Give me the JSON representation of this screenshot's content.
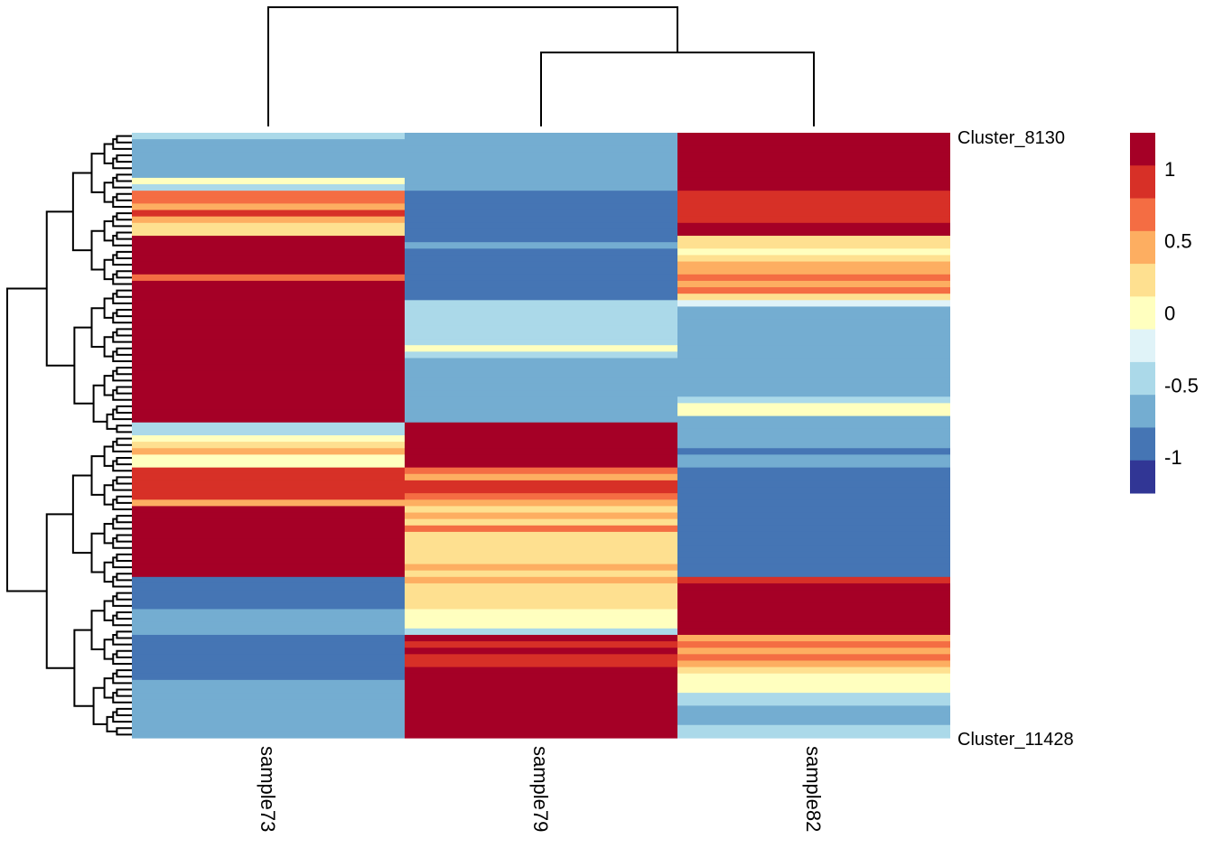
{
  "chart_data": {
    "type": "heatmap",
    "title": "",
    "columns": [
      "sample73",
      "sample79",
      "sample82"
    ],
    "column_dendrogram": {
      "merges": [
        {
          "left": "sample79",
          "right": "sample82",
          "height": 0.62
        },
        {
          "left": "sample73",
          "right": "(sample79,sample82)",
          "height": 1.0
        }
      ]
    },
    "row_dendrogram_visible": true,
    "row_label_prefix": "Cluster_",
    "visible_row_labels": [
      "Cluster_8130",
      "Cluster_11428"
    ],
    "color_scale": {
      "breaks": [
        1.25,
        1.0,
        0.75,
        0.5,
        0.25,
        0.0,
        -0.25,
        -0.5,
        -0.75,
        -1.0,
        -1.25
      ],
      "colors": [
        "#A50026",
        "#D73027",
        "#F46D43",
        "#FDAE61",
        "#FEE090",
        "#FFFFBF",
        "#E0F3F8",
        "#ABD9E9",
        "#74ADD1",
        "#4575B4",
        "#313695"
      ],
      "legend_ticks": [
        {
          "value": 1,
          "label": "1"
        },
        {
          "value": 0.5,
          "label": "0.5"
        },
        {
          "value": 0,
          "label": "0"
        },
        {
          "value": -0.5,
          "label": "-0.5"
        },
        {
          "value": -1,
          "label": "-1"
        }
      ]
    },
    "rows": [
      [
        -0.6,
        -0.9,
        1.2
      ],
      [
        -0.9,
        -0.9,
        1.2
      ],
      [
        -0.9,
        -0.9,
        1.2
      ],
      [
        -0.9,
        -0.9,
        1.2
      ],
      [
        -0.9,
        -0.9,
        1.2
      ],
      [
        -0.9,
        -0.9,
        1.2
      ],
      [
        -0.9,
        -0.9,
        1.2
      ],
      [
        -0.1,
        -1.0,
        1.2
      ],
      [
        -0.6,
        -1.0,
        1.2
      ],
      [
        0.6,
        -1.2,
        0.8
      ],
      [
        0.6,
        -1.2,
        0.8
      ],
      [
        0.4,
        -1.2,
        0.8
      ],
      [
        0.8,
        -1.2,
        0.8
      ],
      [
        0.4,
        -1.2,
        0.8
      ],
      [
        0.2,
        -1.2,
        1.0
      ],
      [
        0.1,
        -1.2,
        1.2
      ],
      [
        1.2,
        -1.2,
        0.0
      ],
      [
        1.2,
        -1.0,
        0.2
      ],
      [
        1.2,
        -1.2,
        -0.2
      ],
      [
        1.2,
        -1.2,
        0.2
      ],
      [
        1.0,
        -1.2,
        0.3
      ],
      [
        1.0,
        -1.2,
        0.3
      ],
      [
        0.6,
        -1.2,
        0.5
      ],
      [
        1.0,
        -1.2,
        0.3
      ],
      [
        1.0,
        -1.2,
        0.6
      ],
      [
        1.0,
        -1.2,
        0.2
      ],
      [
        1.2,
        -0.6,
        -0.5
      ],
      [
        1.2,
        -0.6,
        -1.0
      ],
      [
        1.2,
        -0.6,
        -0.9
      ],
      [
        1.2,
        -0.6,
        -0.9
      ],
      [
        1.2,
        -0.6,
        -0.9
      ],
      [
        1.2,
        -0.6,
        -1.0
      ],
      [
        1.2,
        -0.6,
        -1.0
      ],
      [
        1.2,
        -0.2,
        -1.0
      ],
      [
        1.2,
        -0.6,
        -1.0
      ],
      [
        1.2,
        -0.9,
        -0.9
      ],
      [
        1.2,
        -0.9,
        -0.9
      ],
      [
        1.2,
        -0.9,
        -0.9
      ],
      [
        1.2,
        -0.9,
        -0.9
      ],
      [
        1.2,
        -0.9,
        -0.9
      ],
      [
        1.2,
        -0.9,
        -0.9
      ],
      [
        1.2,
        -1.0,
        -0.6
      ],
      [
        1.2,
        -1.0,
        -0.1
      ],
      [
        1.2,
        -1.0,
        -0.1
      ],
      [
        1.2,
        -1.0,
        -0.9
      ],
      [
        -0.6,
        1.2,
        -1.0
      ],
      [
        -0.6,
        1.2,
        -1.0
      ],
      [
        -0.1,
        1.2,
        -1.0
      ],
      [
        0.2,
        1.2,
        -1.0
      ],
      [
        0.3,
        1.0,
        -1.2
      ],
      [
        -0.1,
        1.2,
        -1.0
      ],
      [
        -0.1,
        1.2,
        -1.0
      ],
      [
        0.8,
        0.6,
        -1.2
      ],
      [
        0.8,
        0.4,
        -1.2
      ],
      [
        0.8,
        0.8,
        -1.2
      ],
      [
        0.8,
        0.8,
        -1.2
      ],
      [
        0.8,
        0.6,
        -1.2
      ],
      [
        0.4,
        0.4,
        -1.2
      ],
      [
        1.0,
        0.2,
        -1.2
      ],
      [
        1.0,
        0.3,
        -1.2
      ],
      [
        1.0,
        0.2,
        -1.2
      ],
      [
        1.0,
        0.5,
        -1.2
      ],
      [
        1.0,
        0.2,
        -1.2
      ],
      [
        1.0,
        0.2,
        -1.2
      ],
      [
        1.0,
        0.2,
        -1.2
      ],
      [
        1.2,
        0.1,
        -1.2
      ],
      [
        1.2,
        0.2,
        -1.2
      ],
      [
        1.0,
        0.4,
        -1.2
      ],
      [
        1.2,
        0.1,
        -1.2
      ],
      [
        -1.2,
        0.4,
        0.8
      ],
      [
        -1.2,
        0.2,
        1.0
      ],
      [
        -1.2,
        0.1,
        1.2
      ],
      [
        -1.2,
        0.1,
        1.2
      ],
      [
        -1.2,
        0.1,
        1.2
      ],
      [
        -1.0,
        -0.1,
        1.2
      ],
      [
        -1.0,
        -0.1,
        1.2
      ],
      [
        -1.0,
        -0.1,
        1.2
      ],
      [
        -1.0,
        -0.6,
        1.2
      ],
      [
        -1.2,
        1.0,
        0.3
      ],
      [
        -1.2,
        0.8,
        0.6
      ],
      [
        -1.2,
        1.0,
        0.4
      ],
      [
        -1.2,
        0.8,
        0.5
      ],
      [
        -1.2,
        0.9,
        0.4
      ],
      [
        -1.2,
        1.2,
        0.1
      ],
      [
        -1.2,
        1.2,
        -0.1
      ],
      [
        -1.0,
        1.2,
        -0.1
      ],
      [
        -1.0,
        1.2,
        -0.1
      ],
      [
        -1.0,
        1.2,
        -0.6
      ],
      [
        -0.9,
        1.2,
        -0.6
      ],
      [
        -0.9,
        1.2,
        -0.9
      ],
      [
        -0.9,
        1.2,
        -0.9
      ],
      [
        -0.9,
        1.2,
        -0.9
      ],
      [
        -0.9,
        1.2,
        -0.6
      ],
      [
        -0.9,
        1.2,
        -0.6
      ]
    ]
  }
}
